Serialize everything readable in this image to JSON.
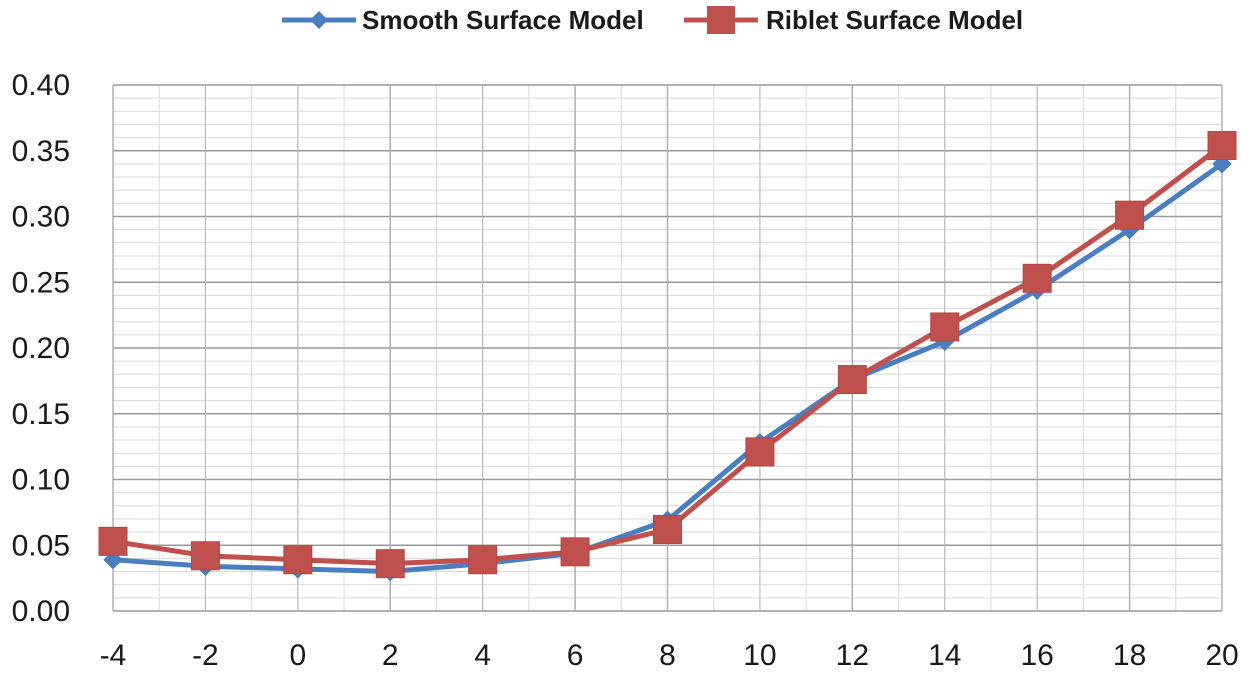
{
  "chart_data": {
    "type": "line",
    "title": "",
    "xlabel": "",
    "ylabel": "",
    "x": [
      -4,
      -2,
      0,
      2,
      4,
      6,
      8,
      10,
      12,
      14,
      16,
      18,
      20
    ],
    "x_tick_labels": [
      "-4",
      "-2",
      "0",
      "2",
      "4",
      "6",
      "8",
      "10",
      "12",
      "14",
      "16",
      "18",
      "20"
    ],
    "y_tick_labels": [
      "0.00",
      "0.05",
      "0.10",
      "0.15",
      "0.20",
      "0.25",
      "0.30",
      "0.35",
      "0.40"
    ],
    "xlim": [
      -4,
      20
    ],
    "ylim": [
      0,
      0.4
    ],
    "grid": true,
    "legend_position": "top-center",
    "series": [
      {
        "name": "Smooth Surface Model",
        "color": "#4a7ec0",
        "marker": "diamond",
        "values": [
          0.039,
          0.034,
          0.032,
          0.03,
          0.036,
          0.044,
          0.069,
          0.128,
          0.176,
          0.205,
          0.244,
          0.29,
          0.34
        ]
      },
      {
        "name": "Riblet Surface Model",
        "color": "#c0504d",
        "marker": "square",
        "values": [
          0.053,
          0.042,
          0.039,
          0.036,
          0.039,
          0.045,
          0.062,
          0.121,
          0.176,
          0.216,
          0.253,
          0.301,
          0.354
        ]
      }
    ]
  }
}
